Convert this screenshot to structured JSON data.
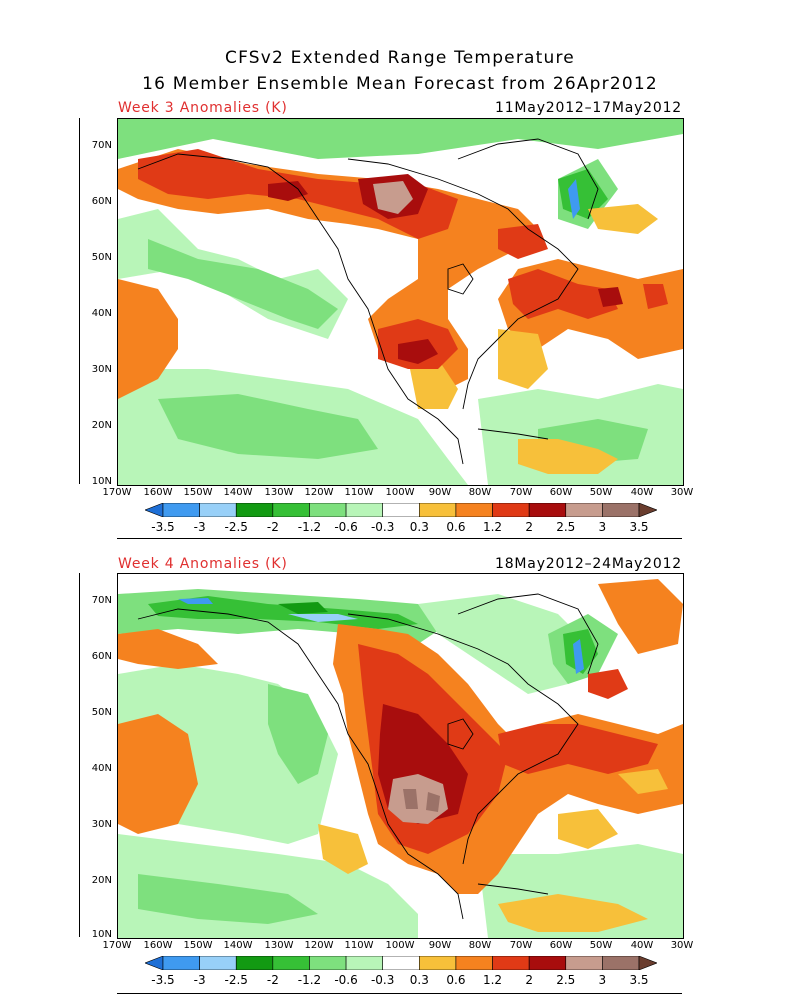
{
  "title_line1": "CFSv2 Extended Range Temperature",
  "title_line2": "16 Member Ensemble Mean Forecast from 26Apr2012",
  "panels": [
    {
      "label": "Week 3 Anomalies (K)",
      "dates": "11May2012–17May2012"
    },
    {
      "label": "Week 4 Anomalies (K)",
      "dates": "18May2012–24May2012"
    }
  ],
  "lat_labels": [
    "70N",
    "60N",
    "50N",
    "40N",
    "30N",
    "20N",
    "10N"
  ],
  "lon_labels": [
    "170W",
    "160W",
    "150W",
    "140W",
    "130W",
    "120W",
    "110W",
    "100W",
    "90W",
    "80W",
    "70W",
    "60W",
    "50W",
    "40W",
    "30W"
  ],
  "colorbar": {
    "labels": [
      "-3.5",
      "-3",
      "-2.5",
      "-2",
      "-1.2",
      "-0.6",
      "-0.3",
      "0.3",
      "0.6",
      "1.2",
      "2",
      "2.5",
      "3",
      "3.5"
    ],
    "colors": [
      "#1e6fd6",
      "#3f9af0",
      "#98d0f8",
      "#129a12",
      "#36c036",
      "#7ee07e",
      "#b8f5b8",
      "#ffffff",
      "#f7c03a",
      "#f5821f",
      "#e03a16",
      "#a80d0d",
      "#c79c8e",
      "#9b7268",
      "#6a3d2e"
    ]
  },
  "colors": {
    "title_label": "#e03030",
    "brown": "#c79c8e",
    "dark_brown": "#9b7268",
    "red_dark": "#a80d0d",
    "red": "#e03a16",
    "orange": "#f5821f",
    "yellow": "#f7c03a",
    "green_light": "#b8f5b8",
    "green": "#7ee07e",
    "green_mid": "#36c036",
    "green_dark": "#129a12",
    "blue_light": "#98d0f8",
    "blue": "#3f9af0"
  }
}
